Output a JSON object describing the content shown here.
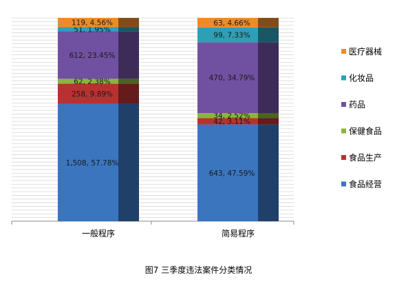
{
  "chart_data": {
    "type": "bar",
    "stacked": true,
    "categories": [
      "一般程序",
      "简易程序"
    ],
    "series": [
      {
        "name": "食品经营",
        "color": "#3A75BE",
        "values": [
          1508,
          643
        ],
        "labels": [
          "1,508, 57.78%",
          "643, 47.59%"
        ]
      },
      {
        "name": "食品生产",
        "color": "#B83131",
        "values": [
          258,
          42
        ],
        "labels": [
          "258, 9.89%",
          "42, 3.11%"
        ]
      },
      {
        "name": "保健食品",
        "color": "#8CB43C",
        "values": [
          62,
          34
        ],
        "labels": [
          "62, 2.38%",
          "34, 2.52%"
        ]
      },
      {
        "name": "药品",
        "color": "#7050A0",
        "values": [
          612,
          470
        ],
        "labels": [
          "612, 23.45%",
          "470, 34.79%"
        ]
      },
      {
        "name": "化妆品",
        "color": "#2E9FB5",
        "values": [
          51,
          99
        ],
        "labels": [
          "51, 1.95%",
          "99, 7.33%"
        ]
      },
      {
        "name": "医疗器械",
        "color": "#EE8A2A",
        "values": [
          119,
          63
        ],
        "labels": [
          "119, 4.56%",
          "63, 4.66%"
        ]
      }
    ],
    "percent_scale": true,
    "legend_position": "right",
    "grid": true,
    "caption": "图7   三季度违法案件分类情况"
  }
}
